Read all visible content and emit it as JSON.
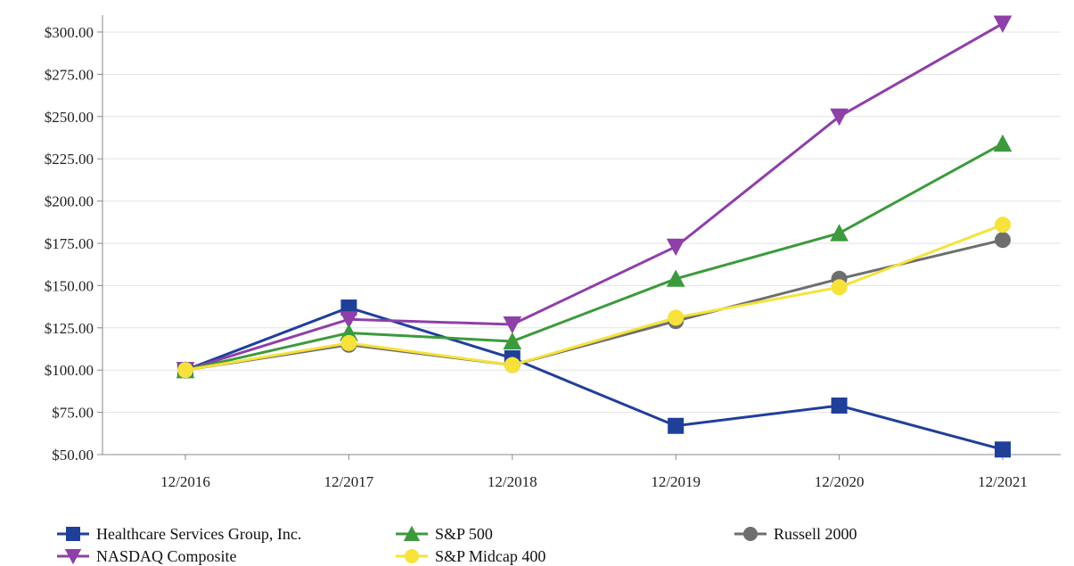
{
  "chart_data": {
    "type": "line",
    "categories": [
      "12/2016",
      "12/2017",
      "12/2018",
      "12/2019",
      "12/2020",
      "12/2021"
    ],
    "ylim": [
      50,
      310
    ],
    "yticks": [
      50,
      75,
      100,
      125,
      150,
      175,
      200,
      225,
      250,
      275,
      300
    ],
    "ytick_labels": [
      "$50.00",
      "$75.00",
      "$100.00",
      "$125.00",
      "$150.00",
      "$175.00",
      "$200.00",
      "$225.00",
      "$250.00",
      "$275.00",
      "$300.00"
    ],
    "grid": true,
    "legend_position": "bottom",
    "series": [
      {
        "name": "Healthcare Services Group, Inc.",
        "color": "#1f3f99",
        "marker": "square",
        "values": [
          100,
          137,
          107,
          67,
          79,
          53
        ]
      },
      {
        "name": "NASDAQ Composite",
        "color": "#8e3fa8",
        "marker": "triangle-down",
        "values": [
          100,
          130,
          127,
          173,
          250,
          305
        ]
      },
      {
        "name": "S&P 500",
        "color": "#3c9a3c",
        "marker": "triangle-up",
        "values": [
          100,
          122,
          117,
          154,
          181,
          234
        ]
      },
      {
        "name": "Russell 2000",
        "color": "#6e6e6e",
        "marker": "circle",
        "values": [
          100,
          115,
          103,
          129,
          154,
          177
        ]
      },
      {
        "name": "S&P Midcap 400",
        "color": "#f6e23a",
        "marker": "circle",
        "values": [
          100,
          116,
          103,
          131,
          149,
          186
        ]
      }
    ]
  }
}
